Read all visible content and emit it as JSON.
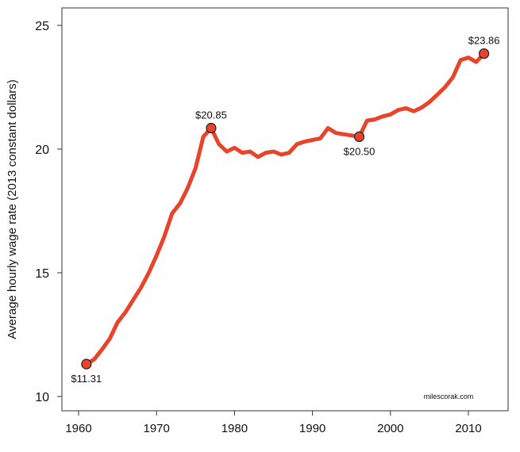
{
  "chart_data": {
    "type": "line",
    "title": "",
    "xlabel": "",
    "ylabel": "Average hourly wage rate (2013 constant dollars)",
    "xlim": [
      1958,
      2015
    ],
    "ylim": [
      9.5,
      25.7
    ],
    "x_ticks": [
      1960,
      1970,
      1980,
      1990,
      2000,
      2010
    ],
    "y_ticks": [
      10,
      15,
      20,
      25
    ],
    "grid": false,
    "line_color": "#e8432b",
    "marker_color": "#e8432b",
    "watermark": "milescorak.com",
    "series": [
      {
        "x": [
          1961,
          1962,
          1963,
          1964,
          1965,
          1966,
          1967,
          1968,
          1969,
          1970,
          1971,
          1972,
          1973,
          1974,
          1975,
          1976,
          1977,
          1978,
          1979,
          1980,
          1981,
          1982,
          1983,
          1984,
          1985,
          1986,
          1987,
          1988,
          1989,
          1990,
          1991,
          1992,
          1993,
          1994,
          1995,
          1996,
          1997,
          1998,
          1999,
          2000,
          2001,
          2002,
          2003,
          2004,
          2005,
          2006,
          2007,
          2008,
          2009,
          2010,
          2011,
          2012
        ],
        "y": [
          11.31,
          11.5,
          11.9,
          12.34,
          13.0,
          13.4,
          13.9,
          14.4,
          15.0,
          15.7,
          16.47,
          17.4,
          17.8,
          18.43,
          19.23,
          20.5,
          20.85,
          20.2,
          19.9,
          20.05,
          19.85,
          19.9,
          19.68,
          19.85,
          19.9,
          19.78,
          19.85,
          20.2,
          20.3,
          20.37,
          20.43,
          20.85,
          20.65,
          20.6,
          20.55,
          20.5,
          21.15,
          21.2,
          21.32,
          21.4,
          21.58,
          21.65,
          21.53,
          21.68,
          21.9,
          22.2,
          22.5,
          22.9,
          23.6,
          23.7,
          23.52,
          23.86
        ]
      }
    ],
    "annotations": [
      {
        "x": 1961,
        "y": 11.31,
        "label": "$11.31",
        "position": "below"
      },
      {
        "x": 1977,
        "y": 20.85,
        "label": "$20.85",
        "position": "above"
      },
      {
        "x": 1996,
        "y": 20.5,
        "label": "$20.50",
        "position": "below"
      },
      {
        "x": 2012,
        "y": 23.86,
        "label": "$23.86",
        "position": "above"
      }
    ]
  }
}
